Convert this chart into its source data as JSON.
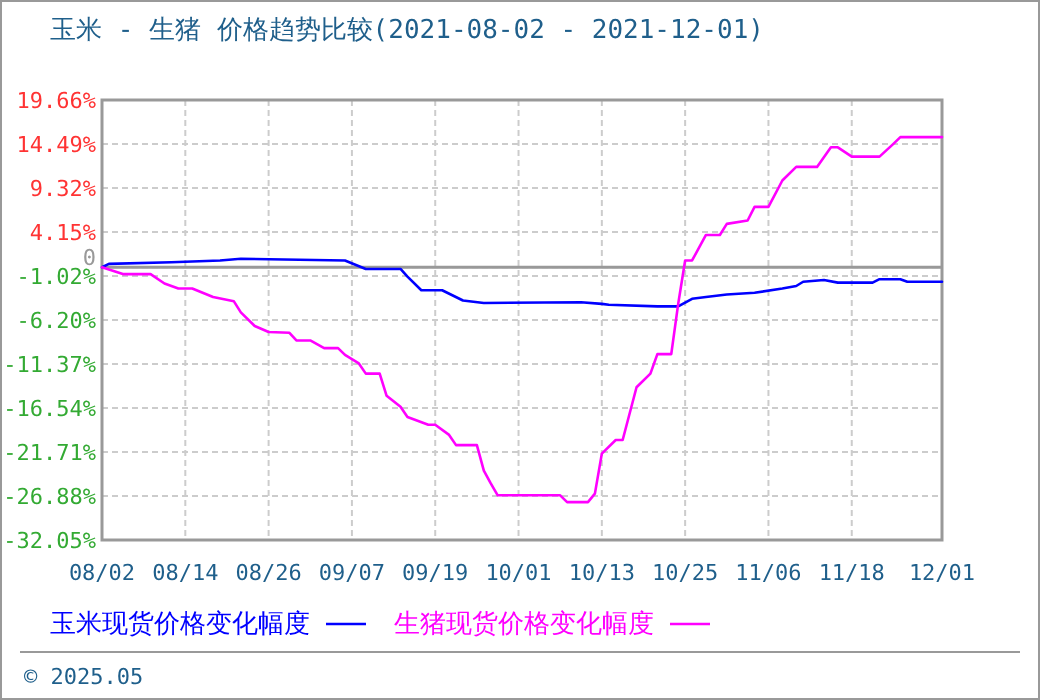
{
  "chart_data": {
    "type": "line",
    "title": "玉米 - 生猪 价格趋势比较(2021-08-02 - 2021-12-01)",
    "annotations": [
      "© 2025.05"
    ],
    "legend": "bottom",
    "grid": true,
    "marker": "none",
    "line_style": "solid",
    "xlim": [
      "2021-08-02",
      "2021-12-01"
    ],
    "xticks": [
      {
        "value": "2021-08-02",
        "label": "08/02"
      },
      {
        "value": "2021-08-14",
        "label": "08/14"
      },
      {
        "value": "2021-08-26",
        "label": "08/26"
      },
      {
        "value": "2021-09-07",
        "label": "09/07"
      },
      {
        "value": "2021-09-19",
        "label": "09/19"
      },
      {
        "value": "2021-10-01",
        "label": "10/01"
      },
      {
        "value": "2021-10-13",
        "label": "10/13"
      },
      {
        "value": "2021-10-25",
        "label": "10/25"
      },
      {
        "value": "2021-11-06",
        "label": "11/06"
      },
      {
        "value": "2021-11-18",
        "label": "11/18"
      },
      {
        "value": "2021-12-01",
        "label": "12/01"
      }
    ],
    "ylim": [
      -32.05,
      19.66
    ],
    "yticks": [
      {
        "value": 19.66,
        "label": "19.66%"
      },
      {
        "value": 14.49,
        "label": "14.49%"
      },
      {
        "value": 9.32,
        "label": "9.32%"
      },
      {
        "value": 4.15,
        "label": "4.15%"
      },
      {
        "value": 0,
        "label": "0"
      },
      {
        "value": -1.02,
        "label": "-1.02%"
      },
      {
        "value": -6.2,
        "label": "-6.20%"
      },
      {
        "value": -11.37,
        "label": "-11.37%"
      },
      {
        "value": -16.54,
        "label": "-16.54%"
      },
      {
        "value": -21.71,
        "label": "-21.71%"
      },
      {
        "value": -26.88,
        "label": "-26.88%"
      },
      {
        "value": -32.05,
        "label": "-32.05%"
      }
    ],
    "ref_lines": [
      {
        "axis": "y",
        "value": 0,
        "color": "#999999"
      }
    ],
    "series": [
      {
        "name": "玉米现货价格变化幅度",
        "color": "#0000ff",
        "x": [
          "2021-08-02",
          "2021-08-03",
          "2021-08-12",
          "2021-08-19",
          "2021-08-22",
          "2021-09-06",
          "2021-09-09",
          "2021-09-14",
          "2021-09-15",
          "2021-09-17",
          "2021-09-20",
          "2021-09-23",
          "2021-09-26",
          "2021-10-10",
          "2021-10-13",
          "2021-10-14",
          "2021-10-21",
          "2021-10-24",
          "2021-10-26",
          "2021-10-28",
          "2021-10-31",
          "2021-11-04",
          "2021-11-08",
          "2021-11-10",
          "2021-11-11",
          "2021-11-14",
          "2021-11-16",
          "2021-11-21",
          "2021-11-22",
          "2021-11-25",
          "2021-11-26",
          "2021-12-01"
        ],
        "values": [
          0,
          0.4,
          0.6,
          0.8,
          1.0,
          0.8,
          -0.2,
          -0.2,
          -1.1,
          -2.7,
          -2.7,
          -3.9,
          -4.2,
          -4.1,
          -4.3,
          -4.4,
          -4.6,
          -4.6,
          -3.7,
          -3.5,
          -3.2,
          -3.0,
          -2.5,
          -2.2,
          -1.7,
          -1.5,
          -1.8,
          -1.8,
          -1.4,
          -1.4,
          -1.7,
          -1.7
        ]
      },
      {
        "name": "生猪现货价格变化幅度",
        "color": "#ff00ff",
        "x": [
          "2021-08-02",
          "2021-08-05",
          "2021-08-09",
          "2021-08-11",
          "2021-08-13",
          "2021-08-15",
          "2021-08-18",
          "2021-08-21",
          "2021-08-22",
          "2021-08-24",
          "2021-08-26",
          "2021-08-29",
          "2021-08-30",
          "2021-09-01",
          "2021-09-03",
          "2021-09-05",
          "2021-09-06",
          "2021-09-08",
          "2021-09-09",
          "2021-09-11",
          "2021-09-12",
          "2021-09-14",
          "2021-09-15",
          "2021-09-18",
          "2021-09-19",
          "2021-09-21",
          "2021-09-22",
          "2021-09-25",
          "2021-09-26",
          "2021-09-27",
          "2021-09-28",
          "2021-10-07",
          "2021-10-08",
          "2021-10-11",
          "2021-10-12",
          "2021-10-13",
          "2021-10-15",
          "2021-10-16",
          "2021-10-18",
          "2021-10-20",
          "2021-10-21",
          "2021-10-23",
          "2021-10-24",
          "2021-10-25",
          "2021-10-26",
          "2021-10-28",
          "2021-10-30",
          "2021-10-31",
          "2021-11-03",
          "2021-11-04",
          "2021-11-06",
          "2021-11-08",
          "2021-11-10",
          "2021-11-13",
          "2021-11-15",
          "2021-11-16",
          "2021-11-18",
          "2021-11-22",
          "2021-11-24",
          "2021-11-25",
          "2021-12-01"
        ],
        "values": [
          0,
          -0.8,
          -0.8,
          -1.9,
          -2.5,
          -2.5,
          -3.5,
          -4.0,
          -5.3,
          -6.9,
          -7.6,
          -7.7,
          -8.6,
          -8.6,
          -9.5,
          -9.5,
          -10.3,
          -11.3,
          -12.5,
          -12.5,
          -15.1,
          -16.4,
          -17.6,
          -18.5,
          -18.5,
          -19.7,
          -20.9,
          -20.9,
          -23.9,
          -25.4,
          -26.8,
          -26.8,
          -27.6,
          -27.6,
          -26.6,
          -21.9,
          -20.3,
          -20.3,
          -14.1,
          -12.5,
          -10.2,
          -10.2,
          -4.3,
          0.8,
          0.8,
          3.8,
          3.8,
          5.1,
          5.5,
          7.1,
          7.1,
          10.2,
          11.8,
          11.8,
          14.1,
          14.1,
          13.0,
          13.0,
          14.5,
          15.3,
          15.3
        ]
      }
    ]
  }
}
